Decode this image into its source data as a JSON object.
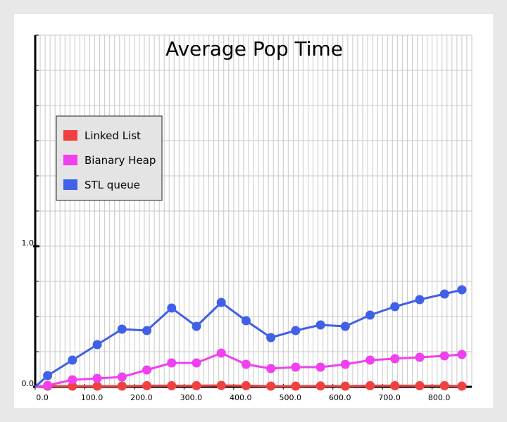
{
  "chart_data": {
    "type": "line",
    "title": "Average Pop Time",
    "xlabel": "",
    "ylabel": "",
    "xlim": [
      0,
      880
    ],
    "ylim": [
      0,
      2.5
    ],
    "x_ticks": [
      "0.0",
      "100.0",
      "200.0",
      "300.0",
      "400.0",
      "500.0",
      "600.0",
      "700.0",
      "800.0"
    ],
    "x_tick_values": [
      0,
      100,
      200,
      300,
      400,
      500,
      600,
      700,
      800
    ],
    "y_ticks": [
      "0.0",
      "1.0"
    ],
    "y_tick_values": [
      0,
      1
    ],
    "grid": true,
    "legend_position": "upper-left",
    "x": [
      0,
      25,
      50,
      75,
      100,
      125,
      150,
      175,
      200,
      225,
      250,
      275,
      300,
      325,
      350,
      375,
      400,
      425,
      450,
      475,
      500,
      525,
      550,
      575,
      600,
      625,
      650,
      675,
      700,
      725,
      750,
      775,
      800,
      825,
      850,
      875
    ],
    "series": [
      {
        "name": "Linked List",
        "color": "#f04040",
        "x": [
          0,
          25,
          75,
          125,
          175,
          225,
          275,
          325,
          375,
          425,
          475,
          525,
          575,
          625,
          675,
          725,
          775,
          825,
          860
        ],
        "values": [
          0,
          0.005,
          0.005,
          0.005,
          0.005,
          0.008,
          0.008,
          0.008,
          0.01,
          0.008,
          0.005,
          0.005,
          0.006,
          0.005,
          0.008,
          0.008,
          0.008,
          0.008,
          0.005
        ]
      },
      {
        "name": "Bianary Heap",
        "color": "#f040f0",
        "x": [
          0,
          25,
          75,
          125,
          175,
          225,
          275,
          325,
          375,
          425,
          475,
          525,
          575,
          625,
          675,
          725,
          775,
          825,
          860
        ],
        "values": [
          0,
          0.01,
          0.05,
          0.06,
          0.07,
          0.12,
          0.17,
          0.17,
          0.24,
          0.16,
          0.13,
          0.14,
          0.14,
          0.16,
          0.19,
          0.2,
          0.21,
          0.22,
          0.23
        ]
      },
      {
        "name": "STL queue",
        "color": "#4060e8",
        "x": [
          0,
          25,
          75,
          125,
          175,
          225,
          275,
          325,
          375,
          425,
          475,
          525,
          575,
          625,
          675,
          725,
          775,
          825,
          860
        ],
        "values": [
          0,
          0.08,
          0.19,
          0.3,
          0.41,
          0.4,
          0.56,
          0.43,
          0.6,
          0.47,
          0.35,
          0.4,
          0.44,
          0.43,
          0.51,
          0.57,
          0.62,
          0.66,
          0.69
        ]
      }
    ]
  }
}
